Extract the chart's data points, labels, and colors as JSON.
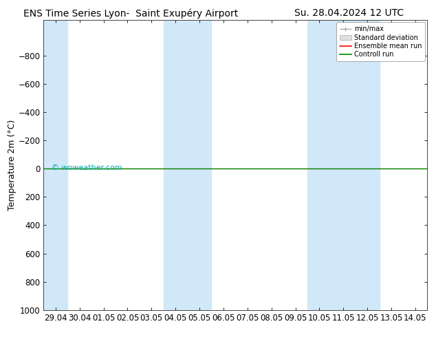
{
  "title_left": "ENS Time Series Lyon-  Saint Exupéry Airport",
  "title_right": "Su. 28.04.2024 12 UTC",
  "ylabel": "Temperature 2m (°C)",
  "ylim_bottom": 1000,
  "ylim_top": -1050,
  "yticks": [
    -800,
    -600,
    -400,
    -200,
    0,
    200,
    400,
    600,
    800,
    1000
  ],
  "xtick_labels": [
    "29.04",
    "30.04",
    "01.05",
    "02.05",
    "03.05",
    "04.05",
    "05.05",
    "06.05",
    "07.05",
    "08.05",
    "09.05",
    "10.05",
    "11.05",
    "12.05",
    "13.05",
    "14.05"
  ],
  "xtick_values": [
    0,
    1,
    2,
    3,
    4,
    5,
    6,
    7,
    8,
    9,
    10,
    11,
    12,
    13,
    14,
    15
  ],
  "xmin": -0.5,
  "xmax": 15.5,
  "blue_band_spans": [
    [
      -0.5,
      0.5
    ],
    [
      4.5,
      6.5
    ],
    [
      10.5,
      11.5
    ],
    [
      11.5,
      13.5
    ]
  ],
  "control_run_y": 0,
  "ensemble_mean_y": 0,
  "watermark": "© woweather.com",
  "bg_color": "#ffffff",
  "plot_bg_color": "#ffffff",
  "band_color": "#d0e8f8",
  "legend_items": [
    "min/max",
    "Standard deviation",
    "Ensemble mean run",
    "Controll run"
  ],
  "legend_colors": [
    "#aaaaaa",
    "#cccccc",
    "#ff0000",
    "#008800"
  ],
  "title_fontsize": 10,
  "axis_fontsize": 9,
  "tick_fontsize": 8.5
}
